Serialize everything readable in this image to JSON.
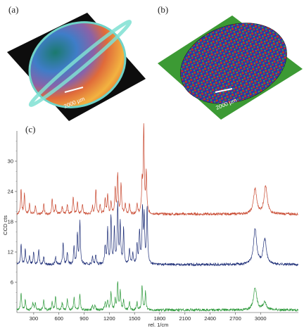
{
  "panels": {
    "a": {
      "label": "(a)",
      "scalebar": "2000 µm"
    },
    "b": {
      "label": "(b)",
      "scalebar": "2000 µm"
    },
    "c": {
      "label": "(c)"
    }
  },
  "chart_data": {
    "type": "line",
    "xlabel": "rel. 1/cm",
    "ylabel": "CCD cts",
    "xlim": [
      100,
      3450
    ],
    "ylim": [
      0,
      36
    ],
    "xticks": [
      300,
      600,
      900,
      1200,
      1500,
      1800,
      2100,
      2400,
      2700,
      3000
    ],
    "yticks": [
      6,
      12,
      18,
      24,
      30
    ],
    "series": [
      {
        "color": "#c8472e",
        "baseline": 19.5,
        "peaks": [
          [
            150,
            5
          ],
          [
            190,
            4
          ],
          [
            250,
            2
          ],
          [
            320,
            1.5
          ],
          [
            420,
            2
          ],
          [
            520,
            3
          ],
          [
            560,
            2
          ],
          [
            640,
            1.5
          ],
          [
            700,
            2
          ],
          [
            770,
            3.5
          ],
          [
            820,
            2.5
          ],
          [
            880,
            2
          ],
          [
            1000,
            1.5
          ],
          [
            1040,
            5
          ],
          [
            1090,
            2
          ],
          [
            1150,
            3
          ],
          [
            1180,
            4
          ],
          [
            1220,
            2.5
          ],
          [
            1270,
            5
          ],
          [
            1300,
            8
          ],
          [
            1340,
            6
          ],
          [
            1390,
            2
          ],
          [
            1440,
            2
          ],
          [
            1530,
            2
          ],
          [
            1590,
            6
          ],
          [
            1610,
            17
          ],
          [
            1640,
            8
          ],
          [
            2935,
            5
          ],
          [
            3060,
            5.5
          ]
        ]
      },
      {
        "color": "#1f2f78",
        "baseline": 9.5,
        "peaks": [
          [
            150,
            4
          ],
          [
            200,
            3
          ],
          [
            250,
            1.5
          ],
          [
            300,
            2.5
          ],
          [
            360,
            3
          ],
          [
            420,
            1.5
          ],
          [
            560,
            1.5
          ],
          [
            650,
            4.5
          ],
          [
            700,
            2.5
          ],
          [
            780,
            3.5
          ],
          [
            820,
            6
          ],
          [
            850,
            8.5
          ],
          [
            1000,
            1.5
          ],
          [
            1040,
            2
          ],
          [
            1150,
            3.5
          ],
          [
            1180,
            7
          ],
          [
            1220,
            9.5
          ],
          [
            1260,
            7
          ],
          [
            1300,
            12
          ],
          [
            1330,
            8
          ],
          [
            1370,
            7
          ],
          [
            1440,
            3
          ],
          [
            1480,
            2
          ],
          [
            1530,
            4
          ],
          [
            1560,
            6.5
          ],
          [
            1595,
            10.5
          ],
          [
            1615,
            9
          ],
          [
            1650,
            11.5
          ],
          [
            2935,
            7
          ],
          [
            3050,
            5
          ]
        ]
      },
      {
        "color": "#2e9a3c",
        "baseline": 0.5,
        "peaks": [
          [
            150,
            3.5
          ],
          [
            200,
            2
          ],
          [
            290,
            1.5
          ],
          [
            320,
            1.5
          ],
          [
            420,
            2
          ],
          [
            520,
            1.5
          ],
          [
            560,
            2.5
          ],
          [
            640,
            1.5
          ],
          [
            700,
            2
          ],
          [
            780,
            2.5
          ],
          [
            850,
            3
          ],
          [
            1000,
            1
          ],
          [
            1030,
            1
          ],
          [
            1150,
            1.5
          ],
          [
            1180,
            2
          ],
          [
            1220,
            3.5
          ],
          [
            1270,
            2
          ],
          [
            1300,
            5.5
          ],
          [
            1330,
            3.5
          ],
          [
            1370,
            2
          ],
          [
            1440,
            1.5
          ],
          [
            1530,
            1.5
          ],
          [
            1590,
            5
          ],
          [
            1630,
            3.5
          ],
          [
            2935,
            4.5
          ],
          [
            3050,
            1.5
          ]
        ]
      }
    ]
  }
}
